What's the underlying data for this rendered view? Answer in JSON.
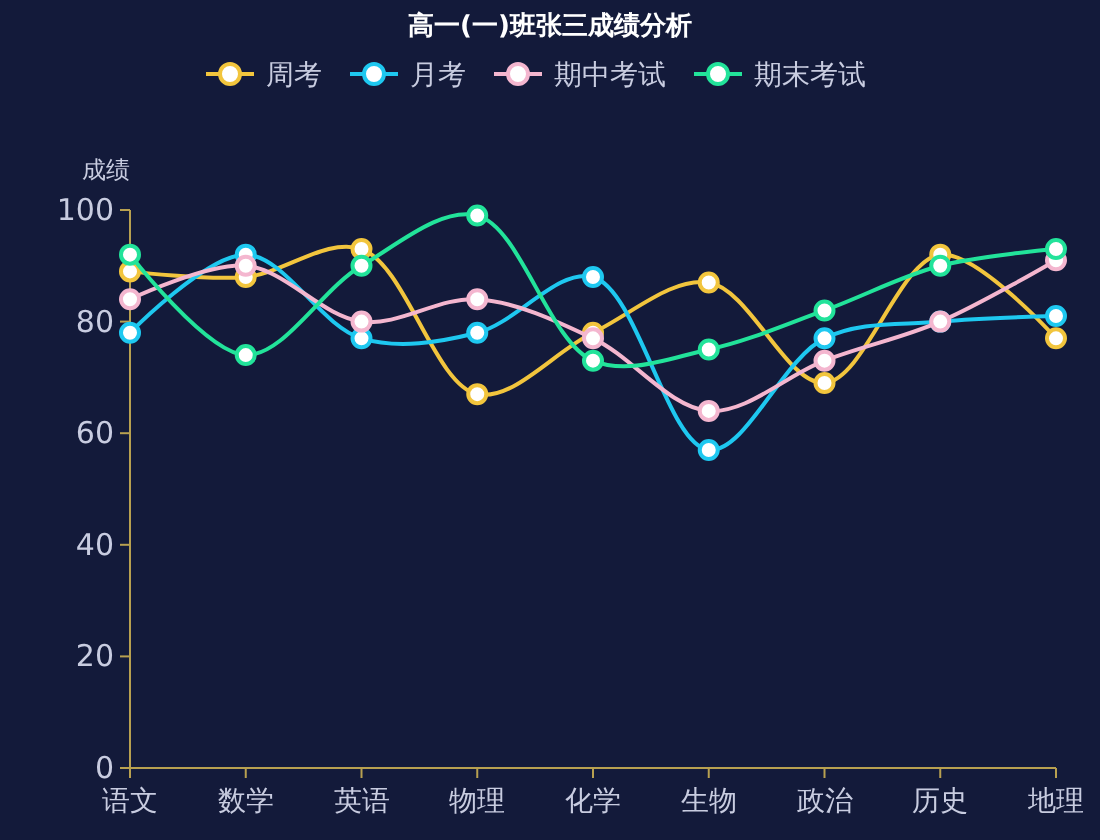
{
  "chart_data": {
    "type": "line",
    "title": "高一(一)班张三成绩分析",
    "ylabel": "成绩",
    "categories": [
      "语文",
      "数学",
      "英语",
      "物理",
      "化学",
      "生物",
      "政治",
      "历史",
      "地理"
    ],
    "series": [
      {
        "name": "周考",
        "color": "#f2c53d",
        "values": [
          89,
          88,
          93,
          67,
          78,
          87,
          69,
          92,
          77
        ]
      },
      {
        "name": "月考",
        "color": "#1ec8f0",
        "values": [
          78,
          92,
          77,
          78,
          88,
          57,
          77,
          80,
          81
        ]
      },
      {
        "name": "期中考试",
        "color": "#f4b6cf",
        "values": [
          84,
          90,
          80,
          84,
          77,
          64,
          73,
          80,
          91
        ]
      },
      {
        "name": "期末考试",
        "color": "#22e39a",
        "values": [
          92,
          74,
          90,
          99,
          73,
          75,
          82,
          90,
          93
        ]
      }
    ],
    "ylim": [
      0,
      100
    ],
    "yticks": [
      0,
      20,
      40,
      60,
      80,
      100
    ],
    "grid": false,
    "legend": "top",
    "marker": "circle",
    "line_style": "solid"
  }
}
